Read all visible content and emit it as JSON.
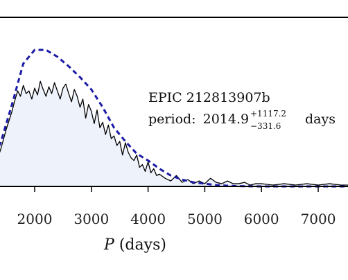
{
  "chart_data": {
    "type": "area",
    "title": "",
    "xlabel_italic": "P",
    "xlabel_rest": " (days)",
    "ylabel": "",
    "xlim": [
      -500,
      7600
    ],
    "ylim": [
      0,
      1.08
    ],
    "xticks": [
      2000,
      3000,
      4000,
      5000,
      6000,
      7000
    ],
    "xtick_labels": [
      "2000",
      "3000",
      "4000",
      "5000",
      "6000",
      "7000"
    ],
    "grid": false,
    "colors": {
      "histogram_fill": "#eef2fb",
      "histogram_line": "#000000",
      "model_line": "#1a1aa6",
      "axis": "#000000"
    },
    "annotation": {
      "line1": "EPIC 212813907b",
      "period_label": "period:",
      "period_value": "2014.9",
      "period_plus": "+1117.2",
      "period_minus": "−331.6",
      "period_unit": "days"
    },
    "series": [
      {
        "style": "solid-filled",
        "x": [
          -500,
          1300,
          1400,
          1500,
          1600,
          1650,
          1700,
          1750,
          1800,
          1850,
          1900,
          1950,
          2000,
          2050,
          2100,
          2150,
          2200,
          2250,
          2300,
          2350,
          2400,
          2450,
          2500,
          2550,
          2600,
          2650,
          2700,
          2750,
          2800,
          2850,
          2900,
          2950,
          3000,
          3050,
          3100,
          3150,
          3200,
          3250,
          3300,
          3350,
          3400,
          3450,
          3500,
          3550,
          3600,
          3650,
          3700,
          3750,
          3800,
          3850,
          3900,
          3950,
          4000,
          4050,
          4100,
          4150,
          4200,
          4300,
          4400,
          4500,
          4600,
          4700,
          4800,
          4900,
          5000,
          5100,
          5200,
          5300,
          5400,
          5500,
          5600,
          5700,
          5800,
          5900,
          6000,
          6200,
          6400,
          6600,
          6800,
          7000,
          7200,
          7400,
          7600
        ],
        "y": [
          0,
          0.15,
          0.27,
          0.42,
          0.55,
          0.63,
          0.7,
          0.66,
          0.74,
          0.68,
          0.7,
          0.64,
          0.72,
          0.67,
          0.77,
          0.71,
          0.66,
          0.73,
          0.68,
          0.76,
          0.7,
          0.64,
          0.72,
          0.75,
          0.68,
          0.62,
          0.71,
          0.66,
          0.58,
          0.64,
          0.5,
          0.6,
          0.55,
          0.46,
          0.56,
          0.43,
          0.47,
          0.38,
          0.45,
          0.35,
          0.37,
          0.3,
          0.33,
          0.23,
          0.32,
          0.25,
          0.21,
          0.19,
          0.23,
          0.14,
          0.16,
          0.11,
          0.18,
          0.1,
          0.13,
          0.08,
          0.09,
          0.06,
          0.04,
          0.08,
          0.03,
          0.05,
          0.02,
          0.04,
          0.02,
          0.06,
          0.03,
          0.02,
          0.04,
          0.02,
          0.02,
          0.03,
          0.01,
          0.02,
          0.02,
          0.01,
          0.02,
          0.01,
          0.02,
          0.01,
          0.02,
          0.01,
          0.01
        ]
      },
      {
        "style": "dashed",
        "x": [
          -500,
          1000,
          1200,
          1400,
          1600,
          1800,
          2000,
          2200,
          2400,
          2600,
          2800,
          3000,
          3200,
          3400,
          3600,
          3800,
          4000,
          4200,
          4400,
          4600,
          4800,
          5000,
          5200,
          5400,
          5600,
          6000,
          6500,
          7000,
          7600
        ],
        "y": [
          0,
          0.05,
          0.15,
          0.32,
          0.6,
          0.9,
          1.0,
          1.0,
          0.95,
          0.88,
          0.8,
          0.71,
          0.58,
          0.43,
          0.33,
          0.24,
          0.19,
          0.13,
          0.08,
          0.05,
          0.03,
          0.02,
          0.01,
          0.005,
          0.002,
          0,
          0,
          0,
          0
        ]
      }
    ]
  }
}
